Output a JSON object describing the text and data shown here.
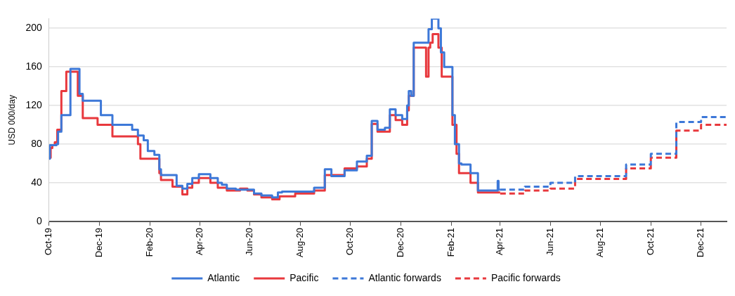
{
  "chart_data": {
    "type": "step",
    "ylabel": "USD 000/day",
    "xlim": [
      "2019-10-01",
      "2022-01-01"
    ],
    "xticks": [
      {
        "value": "2019-10-01",
        "label": "Oct-19"
      },
      {
        "value": "2019-12-01",
        "label": "Dec-19"
      },
      {
        "value": "2020-02-01",
        "label": "Feb-20"
      },
      {
        "value": "2020-04-01",
        "label": "Apr-20"
      },
      {
        "value": "2020-06-01",
        "label": "Jun-20"
      },
      {
        "value": "2020-08-01",
        "label": "Aug-20"
      },
      {
        "value": "2020-10-01",
        "label": "Oct-20"
      },
      {
        "value": "2020-12-01",
        "label": "Dec-20"
      },
      {
        "value": "2021-02-01",
        "label": "Feb-21"
      },
      {
        "value": "2021-04-01",
        "label": "Apr-21"
      },
      {
        "value": "2021-06-01",
        "label": "Jun-21"
      },
      {
        "value": "2021-08-01",
        "label": "Aug-21"
      },
      {
        "value": "2021-10-01",
        "label": "Oct-21"
      },
      {
        "value": "2021-12-01",
        "label": "Dec-21"
      }
    ],
    "ylim": [
      0,
      210
    ],
    "yticks": [
      0,
      40,
      80,
      120,
      160,
      200
    ],
    "grid": "y",
    "legend": "bottom",
    "marker": "none",
    "series": [
      {
        "name": "Atlantic",
        "color": "#3d78d8",
        "line_style": "solid",
        "x": [
          "2019-10-01",
          "2019-10-02",
          "2019-10-10",
          "2019-10-12",
          "2019-10-16",
          "2019-10-27",
          "2019-11-07",
          "2019-11-11",
          "2019-12-03",
          "2019-12-17",
          "2020-01-10",
          "2020-01-17",
          "2020-01-24",
          "2020-01-29",
          "2020-02-06",
          "2020-02-12",
          "2020-02-14",
          "2020-03-04",
          "2020-03-11",
          "2020-03-17",
          "2020-03-23",
          "2020-03-31",
          "2020-04-14",
          "2020-04-23",
          "2020-04-28",
          "2020-05-04",
          "2020-05-15",
          "2020-06-06",
          "2020-06-15",
          "2020-06-28",
          "2020-07-05",
          "2020-07-10",
          "2020-08-18",
          "2020-08-31",
          "2020-09-08",
          "2020-09-24",
          "2020-10-09",
          "2020-10-21",
          "2020-10-27",
          "2020-11-03",
          "2020-11-12",
          "2020-11-18",
          "2020-11-25",
          "2020-12-03",
          "2020-12-09",
          "2020-12-11",
          "2020-12-14",
          "2020-12-17",
          "2021-01-04",
          "2021-01-08",
          "2021-01-16",
          "2021-01-19",
          "2021-01-23",
          "2021-02-02",
          "2021-02-05",
          "2021-02-10",
          "2021-02-13",
          "2021-02-24",
          "2021-03-05",
          "2021-03-29",
          "2021-03-30",
          "2021-04-01"
        ],
        "values": [
          65,
          79,
          80,
          93,
          110,
          158,
          132,
          125,
          110,
          100,
          95,
          89,
          84,
          73,
          69,
          54,
          48,
          37,
          34,
          39,
          45,
          49,
          45,
          40,
          38,
          34,
          33,
          29,
          27,
          25,
          30,
          31,
          35,
          54,
          47,
          53,
          62,
          68,
          104,
          95,
          97,
          116,
          110,
          106,
          120,
          135,
          130,
          185,
          199,
          210,
          200,
          175,
          160,
          110,
          80,
          60,
          59,
          50,
          32,
          42,
          33,
          33
        ]
      },
      {
        "name": "Pacific",
        "color": "#e8383d",
        "line_style": "solid",
        "x": [
          "2019-10-01",
          "2019-10-03",
          "2019-10-05",
          "2019-10-08",
          "2019-10-11",
          "2019-10-16",
          "2019-10-22",
          "2019-11-05",
          "2019-11-11",
          "2019-11-29",
          "2019-12-17",
          "2020-01-17",
          "2020-01-20",
          "2020-02-12",
          "2020-02-14",
          "2020-02-28",
          "2020-03-11",
          "2020-03-17",
          "2020-03-23",
          "2020-03-31",
          "2020-04-14",
          "2020-04-23",
          "2020-05-04",
          "2020-05-20",
          "2020-05-29",
          "2020-06-06",
          "2020-06-15",
          "2020-06-28",
          "2020-07-07",
          "2020-07-26",
          "2020-08-18",
          "2020-08-31",
          "2020-09-24",
          "2020-10-09",
          "2020-10-21",
          "2020-10-27",
          "2020-11-03",
          "2020-11-18",
          "2020-11-25",
          "2020-12-03",
          "2020-12-09",
          "2020-12-11",
          "2020-12-17",
          "2020-12-31",
          "2021-01-01",
          "2021-01-04",
          "2021-01-06",
          "2021-01-09",
          "2021-01-16",
          "2021-01-20",
          "2021-02-02",
          "2021-02-07",
          "2021-02-10",
          "2021-02-24",
          "2021-03-05",
          "2021-04-01"
        ],
        "values": [
          66,
          76,
          79,
          82,
          95,
          135,
          155,
          130,
          107,
          100,
          88,
          80,
          65,
          50,
          43,
          36,
          28,
          35,
          40,
          45,
          40,
          35,
          32,
          34,
          32,
          28,
          25,
          23,
          26,
          29,
          32,
          48,
          55,
          57,
          65,
          101,
          93,
          110,
          105,
          100,
          115,
          130,
          180,
          180,
          150,
          180,
          185,
          194,
          180,
          150,
          100,
          70,
          50,
          40,
          30,
          30
        ]
      },
      {
        "name": "Atlantic forwards",
        "color": "#3d78d8",
        "line_style": "dashed",
        "x": [
          "2021-04-01",
          "2021-05-01",
          "2021-06-01",
          "2021-07-01",
          "2021-09-01",
          "2021-10-01",
          "2021-11-01",
          "2021-12-01",
          "2022-01-01"
        ],
        "values": [
          33,
          36,
          40,
          47,
          59,
          70,
          103,
          108,
          108
        ]
      },
      {
        "name": "Pacific forwards",
        "color": "#e8383d",
        "line_style": "dashed",
        "x": [
          "2021-04-01",
          "2021-05-01",
          "2021-06-01",
          "2021-07-01",
          "2021-09-01",
          "2021-10-01",
          "2021-11-01",
          "2021-12-01",
          "2022-01-01"
        ],
        "values": [
          29,
          32,
          34,
          44,
          55,
          66,
          94,
          100,
          100
        ]
      }
    ]
  }
}
